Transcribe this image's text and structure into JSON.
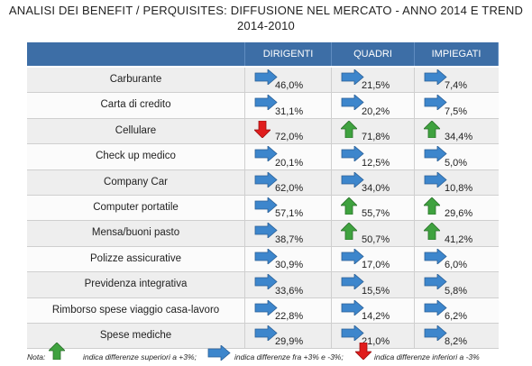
{
  "header": {
    "title": "ANALISI DEI BENEFIT / PERQUISITES: DIFFUSIONE NEL MERCATO - ANNO 2014 E TREND",
    "subtitle": "2014-2010"
  },
  "table": {
    "columns": [
      "DIRIGENTI",
      "QUADRI",
      "IMPIEGATI"
    ],
    "rows": [
      {
        "label": "Carburante",
        "cells": [
          {
            "text": "46,0%",
            "arrow": "right"
          },
          {
            "text": "21,5%",
            "arrow": "right"
          },
          {
            "text": "7,4%",
            "arrow": "right"
          }
        ]
      },
      {
        "label": "Carta di credito",
        "cells": [
          {
            "text": "31,1%",
            "arrow": "right"
          },
          {
            "text": "20,2%",
            "arrow": "right"
          },
          {
            "text": "7,5%",
            "arrow": "right"
          }
        ]
      },
      {
        "label": "Cellulare",
        "cells": [
          {
            "text": "72,0%",
            "arrow": "down"
          },
          {
            "text": "71,8%",
            "arrow": "up"
          },
          {
            "text": "34,4%",
            "arrow": "up"
          }
        ]
      },
      {
        "label": "Check up medico",
        "cells": [
          {
            "text": "20,1%",
            "arrow": "right"
          },
          {
            "text": "12,5%",
            "arrow": "right"
          },
          {
            "text": "5,0%",
            "arrow": "right"
          }
        ]
      },
      {
        "label": "Company Car",
        "cells": [
          {
            "text": "62,0%",
            "arrow": "right"
          },
          {
            "text": "34,0%",
            "arrow": "right"
          },
          {
            "text": "10,8%",
            "arrow": "right"
          }
        ]
      },
      {
        "label": "Computer portatile",
        "cells": [
          {
            "text": "57,1%",
            "arrow": "right"
          },
          {
            "text": "55,7%",
            "arrow": "up"
          },
          {
            "text": "29,6%",
            "arrow": "up"
          }
        ]
      },
      {
        "label": "Mensa/buoni pasto",
        "cells": [
          {
            "text": "38,7%",
            "arrow": "right"
          },
          {
            "text": "50,7%",
            "arrow": "up"
          },
          {
            "text": "41,2%",
            "arrow": "up"
          }
        ]
      },
      {
        "label": "Polizze assicurative",
        "cells": [
          {
            "text": "30,9%",
            "arrow": "right"
          },
          {
            "text": "17,0%",
            "arrow": "right"
          },
          {
            "text": "6,0%",
            "arrow": "right"
          }
        ]
      },
      {
        "label": "Previdenza integrativa",
        "cells": [
          {
            "text": "33,6%",
            "arrow": "right"
          },
          {
            "text": "15,5%",
            "arrow": "right"
          },
          {
            "text": "5,8%",
            "arrow": "right"
          }
        ]
      },
      {
        "label": "Rimborso spese viaggio casa-lavoro",
        "cells": [
          {
            "text": "22,8%",
            "arrow": "right"
          },
          {
            "text": "14,2%",
            "arrow": "right"
          },
          {
            "text": "6,2%",
            "arrow": "right"
          }
        ]
      },
      {
        "label": "Spese mediche",
        "cells": [
          {
            "text": "29,9%",
            "arrow": "right"
          },
          {
            "text": "21,0%",
            "arrow": "right"
          },
          {
            "text": "8,2%",
            "arrow": "right"
          }
        ]
      }
    ]
  },
  "note": {
    "label": "Nota:",
    "up": "indica differenze superiori a +3%;",
    "flat": "indica differenze fra +3% e -3%;",
    "down": "indica differenze inferiori a -3%"
  }
}
